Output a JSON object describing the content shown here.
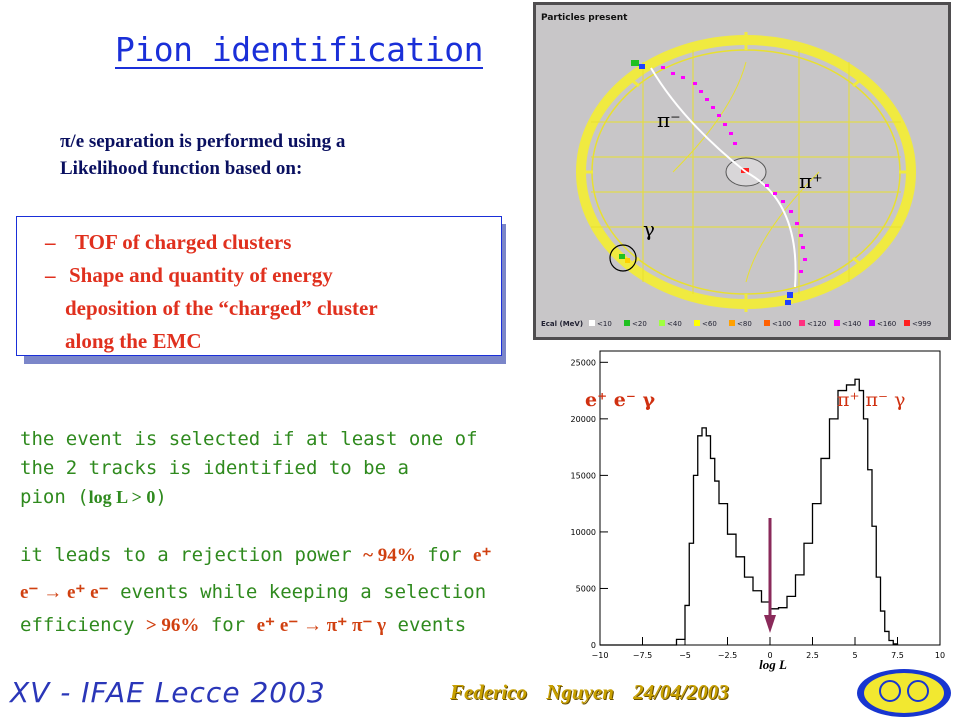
{
  "slide": {
    "title": "Pion identification",
    "intro_line1": "π/e separation is performed using a",
    "intro_line2": "Likelihood function based on:",
    "bullets": [
      {
        "dash": "–",
        "text": "TOF of charged clusters"
      },
      {
        "dash": "–",
        "text": "Shape and quantity of energy"
      },
      {
        "dash": "",
        "text": "deposition of  the “charged” cluster"
      },
      {
        "dash": "",
        "text": "along the EMC"
      }
    ],
    "selection_line1": "the event is selected if at least one of",
    "selection_line2": "the 2 tracks is identified to be a",
    "selection_line3_a": "pion (",
    "selection_line3_b": "log L > 0",
    "selection_line3_c": ")",
    "rejection_line1_a": "it leads to a rejection power ",
    "rejection_line1_b": "~ 94%",
    "rejection_line1_c": " for ",
    "rejection_line1_d": "e⁺",
    "rejection_line2_a": "e⁻ → e⁺ e⁻",
    "rejection_line2_b": " events while keeping a selection",
    "rejection_line3_a": "efficiency ",
    "rejection_line3_b": "> 96%",
    "rejection_line3_c": " for ",
    "rejection_line3_d": "e⁺ e⁻ → π⁺ π⁻ γ",
    "rejection_line3_e": " events",
    "footer_logo": "XV - IFAE Lecce 2003",
    "footer_author": "Federico Nguyen 24/04/2003"
  },
  "event_display": {
    "header": "Particles present",
    "label_pi_minus": "π⁻",
    "label_pi_plus": "π⁺",
    "label_gamma": "γ",
    "legend_prefix": "Ecal (MeV)",
    "legend_items": [
      "<10",
      "<20",
      "<40",
      "<60",
      "<80",
      "<100",
      "<120",
      "<140",
      "<160",
      "<999"
    ],
    "legend_colors": [
      "#ffffff",
      "#20c020",
      "#a0ff40",
      "#ffff00",
      "#ffa000",
      "#ff6000",
      "#ff3080",
      "#ff00ff",
      "#c000ff",
      "#ff2020"
    ]
  },
  "chart_data": {
    "type": "line",
    "title": "",
    "xlabel": "log L",
    "ylabel": "",
    "xlim": [
      -10,
      10
    ],
    "ylim": [
      0,
      26000
    ],
    "x_ticks": [
      "−10",
      "−7.5",
      "−5",
      "−2.5",
      "0",
      "2.5",
      "5",
      "7.5",
      "10"
    ],
    "y_ticks": [
      "0",
      "5000",
      "10000",
      "15000",
      "20000",
      "25000"
    ],
    "annotation_left": "e⁺ e⁻ γ",
    "annotation_right": "π⁺ π⁻ γ",
    "arrow_x": 0,
    "series": [
      {
        "x": [
          -10,
          -6,
          -5.5,
          -5,
          -4.75,
          -4.5,
          -4.25,
          -4,
          -3.75,
          -3.5,
          -3.25,
          -3,
          -2.5,
          -2,
          -1.5,
          -1,
          -0.5,
          0,
          0.5,
          1,
          1.5,
          2,
          2.5,
          3,
          3.5,
          4,
          4.5,
          5,
          5.25,
          5.5,
          5.75,
          6,
          6.25,
          6.5,
          6.75,
          7,
          7.25,
          7.5
        ],
        "y": [
          0,
          0,
          500,
          3500,
          9000,
          15000,
          18500,
          19200,
          18500,
          16500,
          14500,
          12500,
          9800,
          7800,
          6000,
          4800,
          3800,
          3200,
          3300,
          4300,
          6200,
          9000,
          12500,
          16500,
          20000,
          22500,
          23000,
          23500,
          22500,
          20000,
          15500,
          10500,
          6000,
          3000,
          1200,
          400,
          100,
          0
        ]
      }
    ]
  }
}
